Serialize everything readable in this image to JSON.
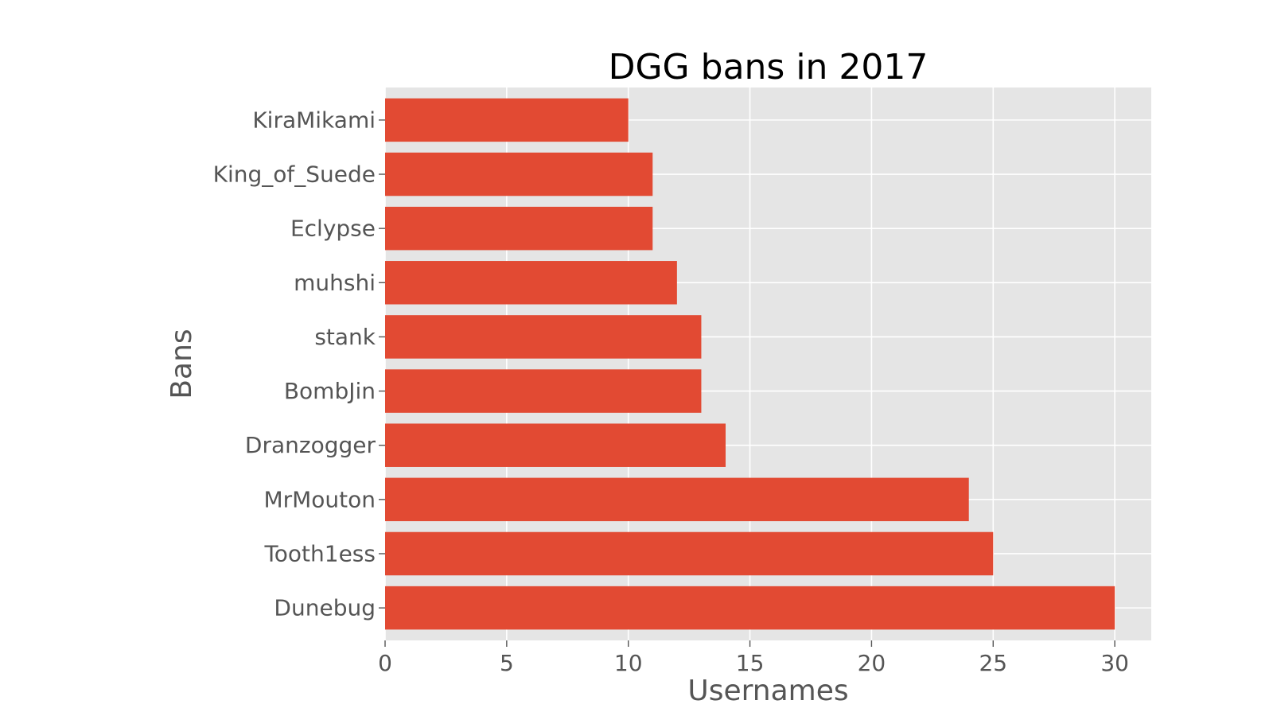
{
  "chart_data": {
    "type": "bar",
    "orientation": "horizontal",
    "title": "DGG bans in 2017",
    "xlabel": "Usernames",
    "ylabel": "Bans",
    "categories": [
      "Dunebug",
      "Tooth1ess",
      "MrMouton",
      "Dranzogger",
      "BombJin",
      "stank",
      "muhshi",
      "Eclypse",
      "King_of_Suede",
      "KiraMikami"
    ],
    "values": [
      30,
      25,
      24,
      14,
      13,
      13,
      12,
      11,
      11,
      10
    ],
    "xlim": [
      0,
      31.5
    ],
    "xticks": [
      0,
      5,
      10,
      15,
      20,
      25,
      30
    ],
    "grid": true,
    "legend": "none",
    "colors": {
      "bar": "#E24A33",
      "plot_background": "#E5E5E5",
      "grid": "#FFFFFF",
      "text": "#555555"
    }
  }
}
